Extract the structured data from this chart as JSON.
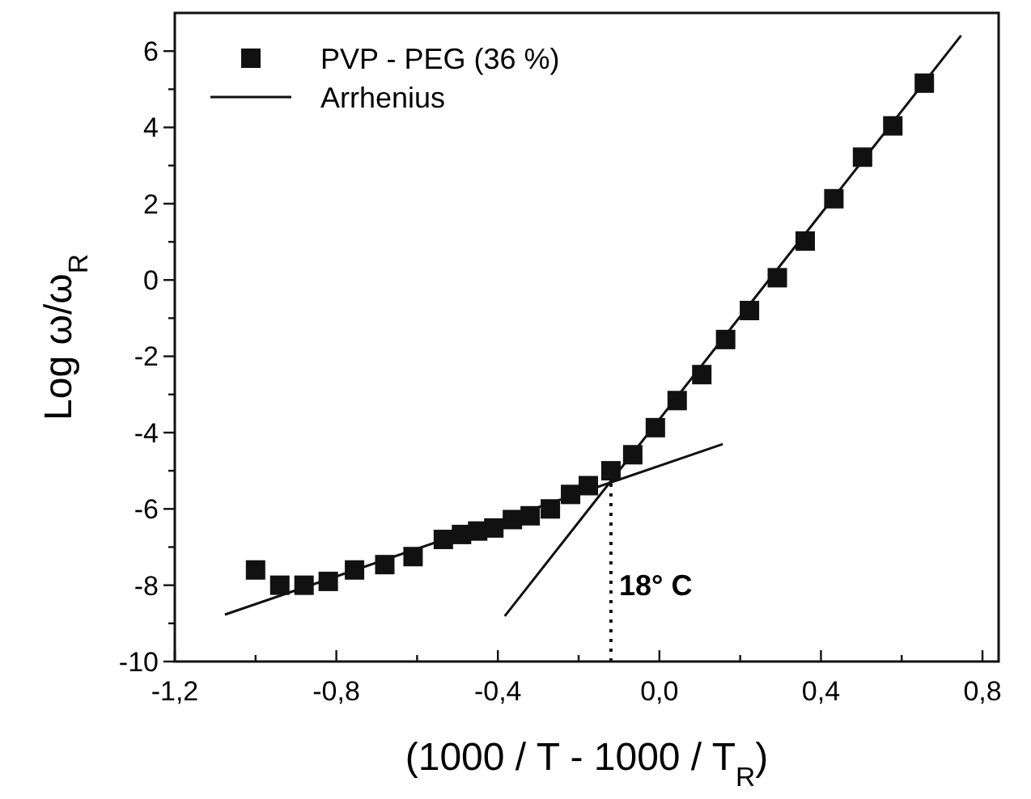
{
  "chart_data": {
    "type": "scatter",
    "xlabel": "(1000 / T - 1000 / T$_{R}$)",
    "ylabel": "Log ω/ω$_{R}$",
    "xlim": [
      -1.2,
      0.84
    ],
    "ylim": [
      -10,
      7
    ],
    "xticks": [
      {
        "value": -1.2,
        "label": "-1,2"
      },
      {
        "value": -1.0,
        "label": null
      },
      {
        "value": -0.8,
        "label": "-0,8"
      },
      {
        "value": -0.6,
        "label": null
      },
      {
        "value": -0.4,
        "label": "-0,4"
      },
      {
        "value": -0.2,
        "label": null
      },
      {
        "value": 0,
        "label": "0,0"
      },
      {
        "value": 0.2,
        "label": null
      },
      {
        "value": 0.4,
        "label": "0,4"
      },
      {
        "value": 0.6,
        "label": null
      },
      {
        "value": 0.8,
        "label": "0,8"
      }
    ],
    "yticks": [
      -10,
      {
        "value": -9,
        "label": null
      },
      -8,
      {
        "value": -7,
        "label": null
      },
      -6,
      {
        "value": -5,
        "label": null
      },
      -4,
      {
        "value": -3,
        "label": null
      },
      -2,
      {
        "value": -1,
        "label": null
      },
      0,
      {
        "value": 1,
        "label": null
      },
      2,
      {
        "value": 3,
        "label": null
      },
      4,
      {
        "value": 5,
        "label": null
      },
      6
    ],
    "legend": "top left",
    "grid": false,
    "series": [
      {
        "name": "PVP - PEG (36 %)",
        "marker": "square",
        "color": "#111111",
        "x": [
          -1.0,
          -0.94,
          -0.88,
          -0.82,
          -0.755,
          -0.68,
          -0.61,
          -0.535,
          -0.49,
          -0.45,
          -0.41,
          -0.364,
          -0.32,
          -0.27,
          -0.22,
          -0.176,
          -0.12,
          -0.066,
          -0.01,
          0.044,
          0.105,
          0.164,
          0.223,
          0.292,
          0.361,
          0.432,
          0.503,
          0.578,
          0.656
        ],
        "values": [
          -7.6,
          -8.0,
          -8.0,
          -7.9,
          -7.6,
          -7.46,
          -7.25,
          -6.8,
          -6.67,
          -6.58,
          -6.5,
          -6.28,
          -6.18,
          -6.0,
          -5.62,
          -5.39,
          -5.0,
          -4.58,
          -3.87,
          -3.16,
          -2.48,
          -1.56,
          -0.8,
          0.06,
          1.02,
          2.13,
          3.22,
          4.04,
          5.16
        ]
      },
      {
        "name": "Arrhenius",
        "type": "line",
        "marker": "none",
        "line_style": "solid",
        "color": "#111111",
        "x": [
          -1.076,
          0.157
        ],
        "values": [
          -8.77,
          -4.3
        ]
      },
      {
        "type": "line",
        "marker": "none",
        "line_style": "solid",
        "color": "#111111",
        "x": [
          -0.383,
          0.747
        ],
        "values": [
          -8.81,
          6.41
        ]
      }
    ],
    "ref_lines": [
      {
        "axis": "x",
        "value": -0.12,
        "label": "18° C",
        "line_style": "dotted",
        "color": "#111111"
      }
    ]
  }
}
